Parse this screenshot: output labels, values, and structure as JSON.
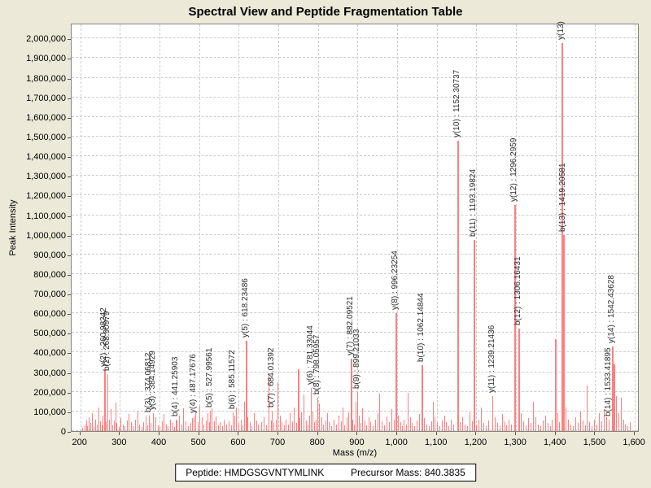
{
  "title": "Spectral View and Peptide Fragmentation Table",
  "footer": {
    "peptide_label": "Peptide:",
    "peptide": "HMDGSGVNTYMLINK",
    "precursor_label": "Precursor Mass:",
    "precursor_mass": "840.3835"
  },
  "colors": {
    "background": "#ece9d8",
    "plot_background": "#ffffff",
    "peak": "#ff7f7f",
    "gridline": "#cccccc",
    "plot_border": "#848484",
    "label_text": "#2b2b2b"
  },
  "chart_data": {
    "type": "bar",
    "title": "Spectral View and Peptide Fragmentation Table",
    "xlabel": "Mass (m/z)",
    "ylabel": "Peak Intensity",
    "xlim": [
      178,
      1612
    ],
    "ylim": [
      0,
      2080000
    ],
    "x_ticks": [
      200,
      300,
      400,
      500,
      600,
      700,
      800,
      900,
      1000,
      1100,
      1200,
      1300,
      1400,
      1500,
      1600
    ],
    "y_ticks": [
      0,
      100000,
      200000,
      300000,
      400000,
      500000,
      600000,
      700000,
      800000,
      900000,
      1000000,
      1100000,
      1200000,
      1300000,
      1400000,
      1500000,
      1600000,
      1700000,
      1800000,
      1900000,
      2000000
    ],
    "grid": true,
    "legend": false,
    "labeled_peaks": [
      {
        "label": "y(2) : 260.98242",
        "mass": 260.98242,
        "intensity": 310000
      },
      {
        "label": "b(2) : 268.90979",
        "mass": 268.90979,
        "intensity": 290000
      },
      {
        "label": "b(3) : 374.06812",
        "mass": 374.06812,
        "intensity": 80000
      },
      {
        "label": "y(3) : 384.14929",
        "mass": 384.14929,
        "intensity": 90000
      },
      {
        "label": "b(4) : 441.25903",
        "mass": 441.25903,
        "intensity": 60000
      },
      {
        "label": "y(4) : 487.17676",
        "mass": 487.17676,
        "intensity": 75000
      },
      {
        "label": "b(5) : 527.99561",
        "mass": 527.99561,
        "intensity": 105000
      },
      {
        "label": "b(6) : 585.11572",
        "mass": 585.11572,
        "intensity": 95000
      },
      {
        "label": "y(5) : 618.23486",
        "mass": 618.23486,
        "intensity": 460000
      },
      {
        "label": "b(7) : 684.01392",
        "mass": 684.01392,
        "intensity": 105000
      },
      {
        "label": "y(6) : 781.33044",
        "mass": 781.33044,
        "intensity": 220000
      },
      {
        "label": "b(8) : 798.05957",
        "mass": 798.05957,
        "intensity": 170000
      },
      {
        "label": "y(7) : 882.09521",
        "mass": 882.09521,
        "intensity": 370000
      },
      {
        "label": "b(9) : 899.21033",
        "mass": 899.21033,
        "intensity": 200000
      },
      {
        "label": "y(8) : 996.23254",
        "mass": 996.23254,
        "intensity": 600000
      },
      {
        "label": "b(10) : 1062.14844",
        "mass": 1062.14844,
        "intensity": 335000
      },
      {
        "label": "y(10) : 1152.30737",
        "mass": 1152.30737,
        "intensity": 1480000
      },
      {
        "label": "b(11) : 1193.19824",
        "mass": 1193.19824,
        "intensity": 975000
      },
      {
        "label": "y(11) : 1239.21436",
        "mass": 1239.21436,
        "intensity": 180000
      },
      {
        "label": "y(12) : 1296.2959",
        "mass": 1296.2959,
        "intensity": 1150000
      },
      {
        "label": "b(12) : 1306.16431",
        "mass": 1306.16431,
        "intensity": 520000
      },
      {
        "label": "y(13)",
        "mass": 1414.2,
        "intensity": 1975000
      },
      {
        "label": "b(13) : 1419.20581",
        "mass": 1419.20581,
        "intensity": 1000000
      },
      {
        "label": "b(14) : 1533.41895",
        "mass": 1533.41895,
        "intensity": 60000
      },
      {
        "label": "y(14) : 1542.43628",
        "mass": 1542.43628,
        "intensity": 430000
      }
    ],
    "noise_peaks": [
      [
        205,
        15000
      ],
      [
        210,
        35000
      ],
      [
        214,
        55000
      ],
      [
        218,
        25000
      ],
      [
        222,
        70000
      ],
      [
        226,
        40000
      ],
      [
        230,
        90000
      ],
      [
        234,
        20000
      ],
      [
        238,
        60000
      ],
      [
        242,
        35000
      ],
      [
        246,
        120000
      ],
      [
        250,
        50000
      ],
      [
        254,
        30000
      ],
      [
        257,
        80000
      ],
      [
        264,
        45000
      ],
      [
        272,
        60000
      ],
      [
        276,
        110000
      ],
      [
        280,
        30000
      ],
      [
        284,
        55000
      ],
      [
        288,
        145000
      ],
      [
        292,
        40000
      ],
      [
        297,
        20000
      ],
      [
        302,
        65000
      ],
      [
        307,
        35000
      ],
      [
        312,
        25000
      ],
      [
        317,
        55000
      ],
      [
        322,
        85000
      ],
      [
        327,
        45000
      ],
      [
        333,
        25000
      ],
      [
        339,
        60000
      ],
      [
        344,
        105000
      ],
      [
        349,
        35000
      ],
      [
        354,
        20000
      ],
      [
        359,
        45000
      ],
      [
        364,
        75000
      ],
      [
        369,
        30000
      ],
      [
        378,
        40000
      ],
      [
        390,
        70000
      ],
      [
        395,
        30000
      ],
      [
        400,
        20000
      ],
      [
        406,
        50000
      ],
      [
        411,
        85000
      ],
      [
        416,
        35000
      ],
      [
        421,
        25000
      ],
      [
        427,
        60000
      ],
      [
        432,
        40000
      ],
      [
        437,
        20000
      ],
      [
        444,
        55000
      ],
      [
        450,
        80000
      ],
      [
        455,
        35000
      ],
      [
        460,
        115000
      ],
      [
        466,
        50000
      ],
      [
        471,
        25000
      ],
      [
        477,
        40000
      ],
      [
        482,
        65000
      ],
      [
        491,
        100000
      ],
      [
        496,
        45000
      ],
      [
        501,
        130000
      ],
      [
        506,
        70000
      ],
      [
        511,
        35000
      ],
      [
        516,
        55000
      ],
      [
        521,
        90000
      ],
      [
        525,
        45000
      ],
      [
        532,
        115000
      ],
      [
        537,
        50000
      ],
      [
        542,
        75000
      ],
      [
        547,
        30000
      ],
      [
        552,
        45000
      ],
      [
        558,
        25000
      ],
      [
        563,
        60000
      ],
      [
        568,
        35000
      ],
      [
        574,
        50000
      ],
      [
        580,
        30000
      ],
      [
        589,
        80000
      ],
      [
        594,
        120000
      ],
      [
        599,
        40000
      ],
      [
        605,
        60000
      ],
      [
        610,
        30000
      ],
      [
        614,
        150000
      ],
      [
        621,
        70000
      ],
      [
        627,
        45000
      ],
      [
        633,
        25000
      ],
      [
        639,
        90000
      ],
      [
        644,
        55000
      ],
      [
        649,
        35000
      ],
      [
        656,
        45000
      ],
      [
        662,
        70000
      ],
      [
        668,
        30000
      ],
      [
        676,
        285000
      ],
      [
        681,
        55000
      ],
      [
        687,
        40000
      ],
      [
        693,
        60000
      ],
      [
        698,
        250000
      ],
      [
        703,
        80000
      ],
      [
        708,
        45000
      ],
      [
        714,
        30000
      ],
      [
        719,
        60000
      ],
      [
        724,
        35000
      ],
      [
        729,
        90000
      ],
      [
        734,
        50000
      ],
      [
        739,
        120000
      ],
      [
        744,
        40000
      ],
      [
        749,
        315000
      ],
      [
        753,
        65000
      ],
      [
        758,
        95000
      ],
      [
        764,
        185000
      ],
      [
        769,
        55000
      ],
      [
        774,
        35000
      ],
      [
        778,
        80000
      ],
      [
        787,
        100000
      ],
      [
        791,
        45000
      ],
      [
        795,
        60000
      ],
      [
        803,
        140000
      ],
      [
        808,
        70000
      ],
      [
        813,
        35000
      ],
      [
        818,
        55000
      ],
      [
        823,
        90000
      ],
      [
        828,
        45000
      ],
      [
        834,
        25000
      ],
      [
        840,
        60000
      ],
      [
        846,
        35000
      ],
      [
        852,
        80000
      ],
      [
        857,
        50000
      ],
      [
        862,
        120000
      ],
      [
        867,
        30000
      ],
      [
        872,
        70000
      ],
      [
        877,
        95000
      ],
      [
        887,
        60000
      ],
      [
        891,
        35000
      ],
      [
        894,
        150000
      ],
      [
        904,
        80000
      ],
      [
        908,
        40000
      ],
      [
        912,
        115000
      ],
      [
        917,
        55000
      ],
      [
        922,
        30000
      ],
      [
        927,
        70000
      ],
      [
        932,
        45000
      ],
      [
        938,
        25000
      ],
      [
        944,
        60000
      ],
      [
        950,
        90000
      ],
      [
        955,
        190000
      ],
      [
        961,
        50000
      ],
      [
        967,
        30000
      ],
      [
        973,
        75000
      ],
      [
        979,
        45000
      ],
      [
        985,
        110000
      ],
      [
        991,
        60000
      ],
      [
        1002,
        80000
      ],
      [
        1007,
        45000
      ],
      [
        1012,
        25000
      ],
      [
        1017,
        60000
      ],
      [
        1022,
        35000
      ],
      [
        1027,
        195000
      ],
      [
        1032,
        70000
      ],
      [
        1037,
        40000
      ],
      [
        1043,
        25000
      ],
      [
        1049,
        55000
      ],
      [
        1055,
        85000
      ],
      [
        1068,
        65000
      ],
      [
        1074,
        35000
      ],
      [
        1080,
        25000
      ],
      [
        1086,
        50000
      ],
      [
        1090,
        150000
      ],
      [
        1095,
        70000
      ],
      [
        1100,
        40000
      ],
      [
        1106,
        25000
      ],
      [
        1112,
        55000
      ],
      [
        1118,
        80000
      ],
      [
        1124,
        45000
      ],
      [
        1130,
        25000
      ],
      [
        1136,
        60000
      ],
      [
        1142,
        35000
      ],
      [
        1158,
        45000
      ],
      [
        1164,
        70000
      ],
      [
        1170,
        35000
      ],
      [
        1176,
        25000
      ],
      [
        1182,
        95000
      ],
      [
        1188,
        50000
      ],
      [
        1200,
        30000
      ],
      [
        1206,
        60000
      ],
      [
        1212,
        120000
      ],
      [
        1218,
        40000
      ],
      [
        1224,
        25000
      ],
      [
        1230,
        55000
      ],
      [
        1246,
        70000
      ],
      [
        1252,
        40000
      ],
      [
        1258,
        25000
      ],
      [
        1264,
        85000
      ],
      [
        1270,
        45000
      ],
      [
        1276,
        30000
      ],
      [
        1282,
        60000
      ],
      [
        1288,
        35000
      ],
      [
        1313,
        90000
      ],
      [
        1319,
        50000
      ],
      [
        1325,
        30000
      ],
      [
        1331,
        65000
      ],
      [
        1337,
        40000
      ],
      [
        1343,
        150000
      ],
      [
        1349,
        70000
      ],
      [
        1355,
        35000
      ],
      [
        1361,
        25000
      ],
      [
        1367,
        55000
      ],
      [
        1373,
        80000
      ],
      [
        1379,
        40000
      ],
      [
        1385,
        25000
      ],
      [
        1391,
        60000
      ],
      [
        1398,
        470000
      ],
      [
        1404,
        90000
      ],
      [
        1409,
        45000
      ],
      [
        1426,
        120000
      ],
      [
        1432,
        60000
      ],
      [
        1438,
        35000
      ],
      [
        1444,
        25000
      ],
      [
        1450,
        70000
      ],
      [
        1456,
        40000
      ],
      [
        1462,
        100000
      ],
      [
        1468,
        55000
      ],
      [
        1474,
        30000
      ],
      [
        1479,
        230000
      ],
      [
        1485,
        45000
      ],
      [
        1491,
        25000
      ],
      [
        1497,
        60000
      ],
      [
        1503,
        35000
      ],
      [
        1509,
        90000
      ],
      [
        1515,
        50000
      ],
      [
        1521,
        110000
      ],
      [
        1527,
        70000
      ],
      [
        1547,
        340000
      ],
      [
        1553,
        180000
      ],
      [
        1558,
        90000
      ],
      [
        1564,
        170000
      ],
      [
        1570,
        60000
      ],
      [
        1576,
        35000
      ],
      [
        1582,
        25000
      ],
      [
        1588,
        45000
      ]
    ]
  }
}
